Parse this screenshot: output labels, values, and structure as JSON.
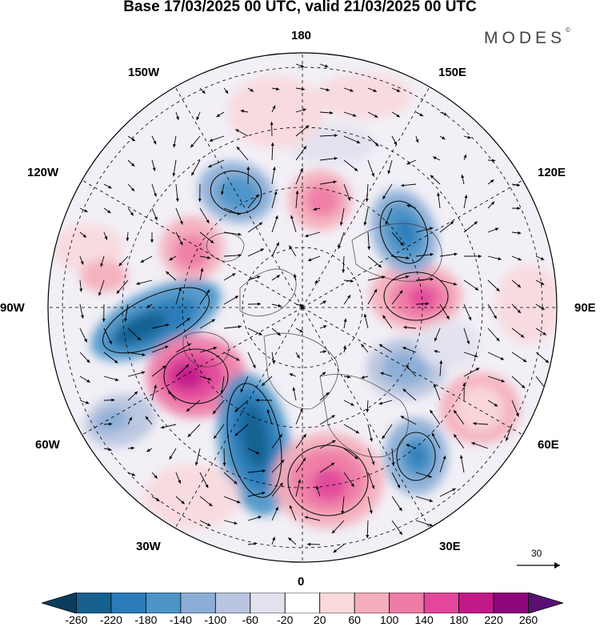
{
  "header": {
    "title": "Base 17/03/2025 00 UTC, valid 21/03/2025 00 UTC",
    "brand": "MODES",
    "brand_mark": "©"
  },
  "map": {
    "projection": "north-polar-stereographic",
    "longitude_labels": [
      {
        "id": "180",
        "text": "180"
      },
      {
        "id": "150e",
        "text": "150E"
      },
      {
        "id": "120e",
        "text": "120E"
      },
      {
        "id": "90e",
        "text": "90E"
      },
      {
        "id": "60e",
        "text": "60E"
      },
      {
        "id": "30e",
        "text": "30E"
      },
      {
        "id": "0",
        "text": "0"
      },
      {
        "id": "30w",
        "text": "30W"
      },
      {
        "id": "60w",
        "text": "60W"
      },
      {
        "id": "90w",
        "text": "90W"
      },
      {
        "id": "120w",
        "text": "120W"
      },
      {
        "id": "150w",
        "text": "150W"
      }
    ],
    "vector_reference": "30",
    "colors": {
      "land_outline": "#3a3a3a",
      "land_fill": "#d9d9d9",
      "graticule": "#000000"
    }
  },
  "colorbar": {
    "ticks": [
      "-260",
      "-220",
      "-180",
      "-140",
      "-100",
      "-60",
      "-20",
      "20",
      "60",
      "100",
      "140",
      "180",
      "220",
      "260"
    ],
    "colors": [
      "#0a3d5e",
      "#15608f",
      "#2a7bb8",
      "#4a94c8",
      "#8aaed6",
      "#b8c4e0",
      "#e2e2ef",
      "#ffffff",
      "#f9d9dc",
      "#f5aebb",
      "#ef7ca6",
      "#e2479b",
      "#c2198a",
      "#8e067d",
      "#5b0f73"
    ]
  }
}
